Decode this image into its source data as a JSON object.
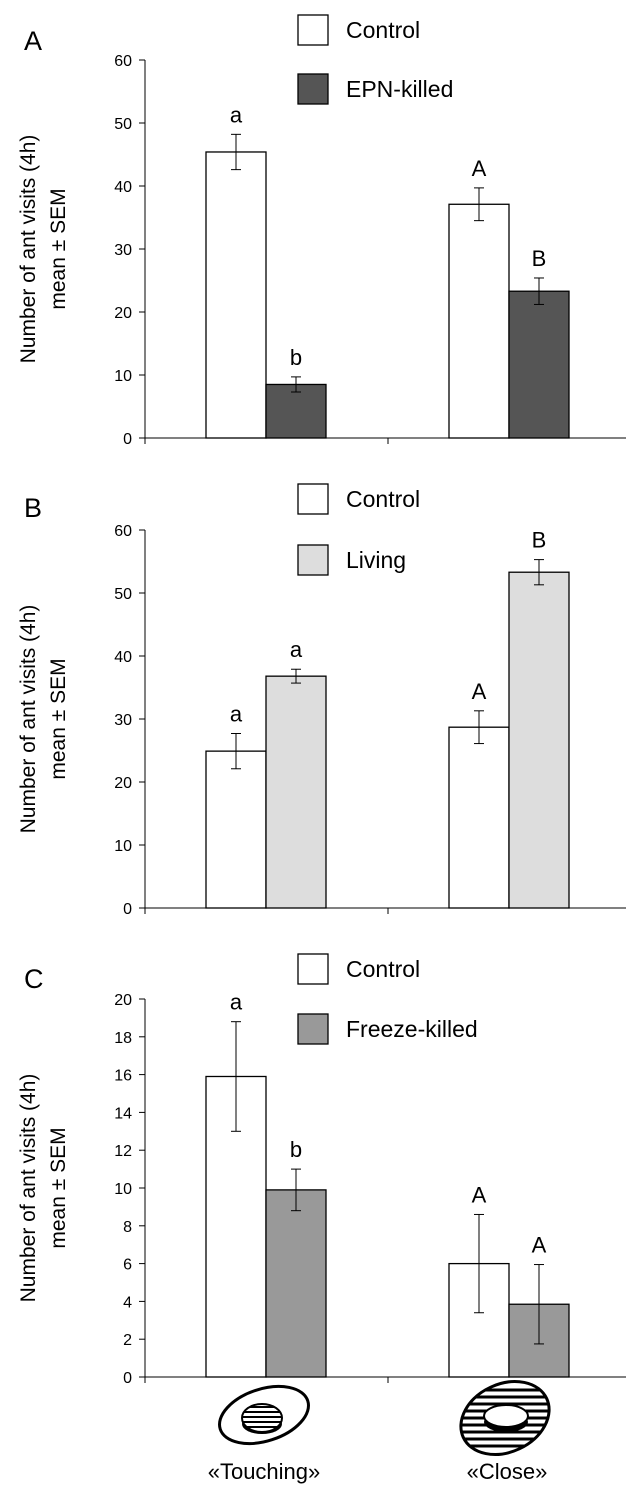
{
  "chart_data": [
    {
      "type": "bar",
      "panel": "A",
      "ylabel_line1": "Number of ant visits (4h)",
      "ylabel_line2": "mean ± SEM",
      "ylim": [
        0,
        60
      ],
      "yticks": [
        0,
        10,
        20,
        30,
        40,
        50,
        60
      ],
      "categories": [
        "«Touching»",
        "«Close»"
      ],
      "legend": "top",
      "series": [
        {
          "name": "Control",
          "color": "#ffffff",
          "values": [
            45.4,
            37.1
          ],
          "sem": [
            2.8,
            2.6
          ],
          "letters": [
            "a",
            "A"
          ]
        },
        {
          "name": "EPN-killed",
          "color": "#555555",
          "values": [
            8.5,
            23.3
          ],
          "sem": [
            1.2,
            2.1
          ],
          "letters": [
            "b",
            "B"
          ]
        }
      ]
    },
    {
      "type": "bar",
      "panel": "B",
      "ylabel_line1": "Number of ant visits (4h)",
      "ylabel_line2": "mean ± SEM",
      "ylim": [
        0,
        60
      ],
      "yticks": [
        0,
        10,
        20,
        30,
        40,
        50,
        60
      ],
      "categories": [
        "«Touching»",
        "«Close»"
      ],
      "legend": "top",
      "series": [
        {
          "name": "Control",
          "color": "#ffffff",
          "values": [
            24.9,
            28.7
          ],
          "sem": [
            2.8,
            2.6
          ],
          "letters": [
            "a",
            "A"
          ]
        },
        {
          "name": "Living",
          "color": "#dddddd",
          "values": [
            36.8,
            53.3
          ],
          "sem": [
            1.1,
            2.0
          ],
          "letters": [
            "a",
            "B"
          ]
        }
      ]
    },
    {
      "type": "bar",
      "panel": "C",
      "ylabel_line1": "Number of ant visits (4h)",
      "ylabel_line2": "mean ± SEM",
      "ylim": [
        0,
        20
      ],
      "yticks": [
        0,
        2,
        4,
        6,
        8,
        10,
        12,
        14,
        16,
        18,
        20
      ],
      "categories": [
        "«Touching»",
        "«Close»"
      ],
      "legend": "top",
      "series": [
        {
          "name": "Control",
          "color": "#ffffff",
          "values": [
            15.9,
            6.0
          ],
          "sem": [
            2.9,
            2.6
          ],
          "letters": [
            "a",
            "A"
          ]
        },
        {
          "name": "Freeze-killed",
          "color": "#999999",
          "values": [
            9.9,
            3.85
          ],
          "sem": [
            1.1,
            2.1
          ],
          "letters": [
            "b",
            "A"
          ]
        }
      ]
    }
  ],
  "x_icons": [
    "touching-diagram",
    "close-diagram"
  ],
  "x_labels": [
    "«Touching»",
    "«Close»"
  ]
}
